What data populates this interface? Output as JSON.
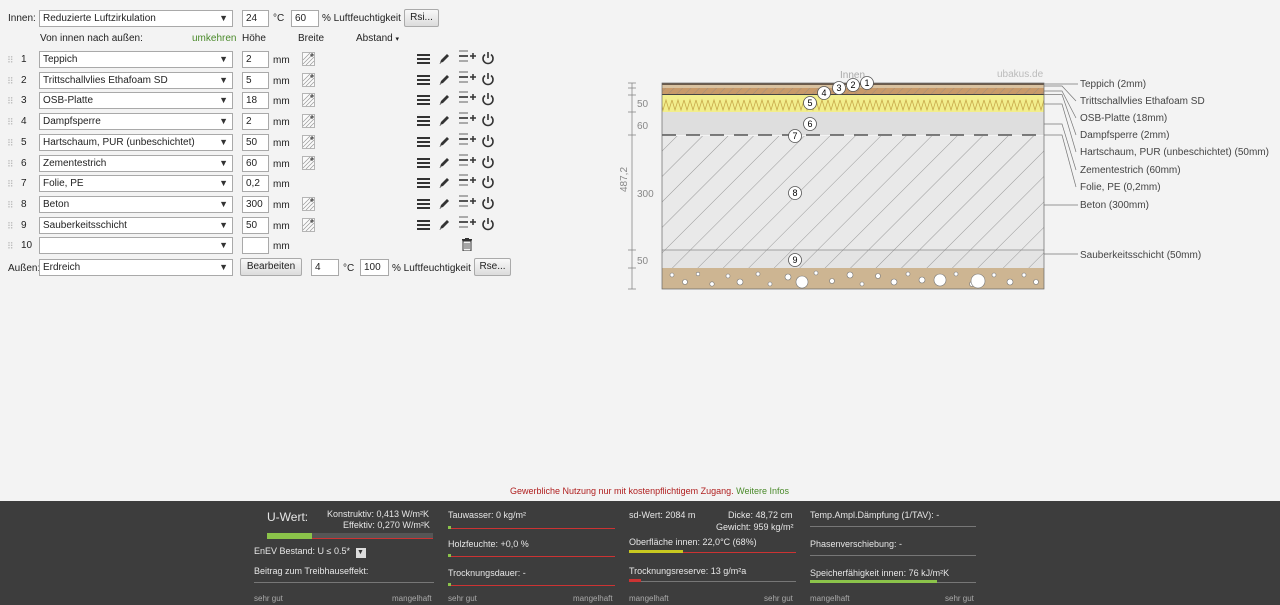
{
  "inner": {
    "label": "Innen:",
    "condition": "Reduzierte Luftzirkulation",
    "temp": "24",
    "temp_unit": "°C",
    "humidity": "60",
    "humidity_unit": "% Luftfeuchtigkeit",
    "rsi_button": "Rsi..."
  },
  "columns": {
    "from_inside": "Von innen nach außen:",
    "reverse": "umkehren",
    "height": "Höhe",
    "width": "Breite",
    "distance": "Abstand"
  },
  "layers": [
    {
      "num": "1",
      "material": "Teppich",
      "thickness": "2",
      "unit": "mm",
      "hatch": true
    },
    {
      "num": "2",
      "material": "Trittschallvlies Ethafoam SD",
      "thickness": "5",
      "unit": "mm",
      "hatch": true
    },
    {
      "num": "3",
      "material": "OSB-Platte",
      "thickness": "18",
      "unit": "mm",
      "hatch": true
    },
    {
      "num": "4",
      "material": "Dampfsperre",
      "thickness": "2",
      "unit": "mm",
      "hatch": true
    },
    {
      "num": "5",
      "material": "Hartschaum, PUR (unbeschichtet)",
      "thickness": "50",
      "unit": "mm",
      "hatch": true
    },
    {
      "num": "6",
      "material": "Zementestrich",
      "thickness": "60",
      "unit": "mm",
      "hatch": true
    },
    {
      "num": "7",
      "material": "Folie, PE",
      "thickness": "0,2",
      "unit": "mm",
      "hatch": false
    },
    {
      "num": "8",
      "material": "Beton",
      "thickness": "300",
      "unit": "mm",
      "hatch": true
    },
    {
      "num": "9",
      "material": "Sauberkeitsschicht",
      "thickness": "50",
      "unit": "mm",
      "hatch": true
    },
    {
      "num": "10",
      "material": "",
      "thickness": "",
      "unit": "mm",
      "hatch": false
    }
  ],
  "outer": {
    "label": "Außen:",
    "condition": "Erdreich",
    "edit_button": "Bearbeiten",
    "temp": "4",
    "temp_unit": "°C",
    "humidity": "100",
    "humidity_unit": "% Luftfeuchtigkeit",
    "rse_button": "Rse..."
  },
  "diagram": {
    "inside_label": "Innen",
    "watermark": "ubakus.de",
    "total_height": "487,2",
    "dim_labels": [
      "50",
      "60",
      "300",
      "50"
    ],
    "callouts": [
      "Teppich (2mm)",
      "Trittschallvlies Ethafoam SD",
      "OSB-Platte (18mm)",
      "Dampfsperre (2mm)",
      "Hartschaum, PUR (unbeschichtet) (50mm)",
      "Zementestrich (60mm)",
      "Folie, PE (0,2mm)",
      "Beton (300mm)",
      "Sauberkeitsschicht (50mm)"
    ],
    "bubbles": [
      "1",
      "2",
      "3",
      "4",
      "5",
      "6",
      "7",
      "8",
      "9"
    ],
    "colors": {
      "carpet": "#8a6a50",
      "insulation": "#f0ec8a",
      "screed": "#c9c9c9",
      "concrete": "#e8e8e8",
      "soil": "#cdb592"
    }
  },
  "notice": {
    "text": "Gewerbliche Nutzung nur mit kostenpflichtigem Zugang.",
    "link": "Weitere Infos"
  },
  "results": {
    "uwert_title": "U-Wert:",
    "konstruktiv": "Konstruktiv: 0,413 W/m²K",
    "effektiv": "Effektiv: 0,270 W/m²K",
    "enev": "EnEV Bestand: U ≤ 0.5*",
    "beitrag": "Beitrag zum Treibhauseffekt:",
    "tauwasser": "Tauwasser: 0 kg/m²",
    "holzfeuchte": "Holzfeuchte: +0,0 %",
    "trocknungsdauer": "Trocknungsdauer: -",
    "sdwert": "sd-Wert: 2084 m",
    "dicke": "Dicke: 48,72 cm",
    "gewicht": "Gewicht: 959 kg/m²",
    "oberflaeche": "Oberfläche innen: 22,0°C (68%)",
    "trocknungsreserve": "Trocknungsreserve: 13 g/m²a",
    "temp_ampl": "Temp.Ampl.Dämpfung (1/TAV): -",
    "phasen": "Phasenverschiebung: -",
    "speicher": "Speicherfähigkeit innen: 76 kJ/m²K",
    "scale_good": "sehr gut",
    "scale_bad": "mangelhaft"
  }
}
